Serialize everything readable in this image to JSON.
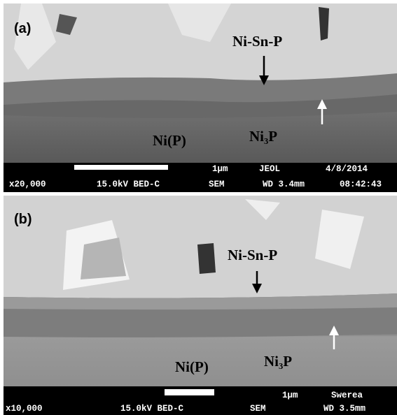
{
  "panels": [
    {
      "label": "(a)",
      "annotations": {
        "top": "Ni-Sn-P",
        "left": "Ni(P)",
        "right": "Ni₃P"
      },
      "info_bar": {
        "scale": "1µm",
        "maker": "JEOL",
        "date": "4/8/2014",
        "magnification": "x20,000",
        "voltage": "15.0kV BED-C",
        "mode": "SEM",
        "wd": "WD 3.4mm",
        "time": "08:42:43"
      }
    },
    {
      "label": "(b)",
      "annotations": {
        "top": "Ni-Sn-P",
        "left": "Ni(P)",
        "right": "Ni₃P"
      },
      "info_bar": {
        "scale": "1µm",
        "maker": "Swerea",
        "magnification": "x10,000",
        "voltage": "15.0kV BED-C",
        "mode": "SEM",
        "wd": "WD 3.5mm"
      }
    }
  ]
}
